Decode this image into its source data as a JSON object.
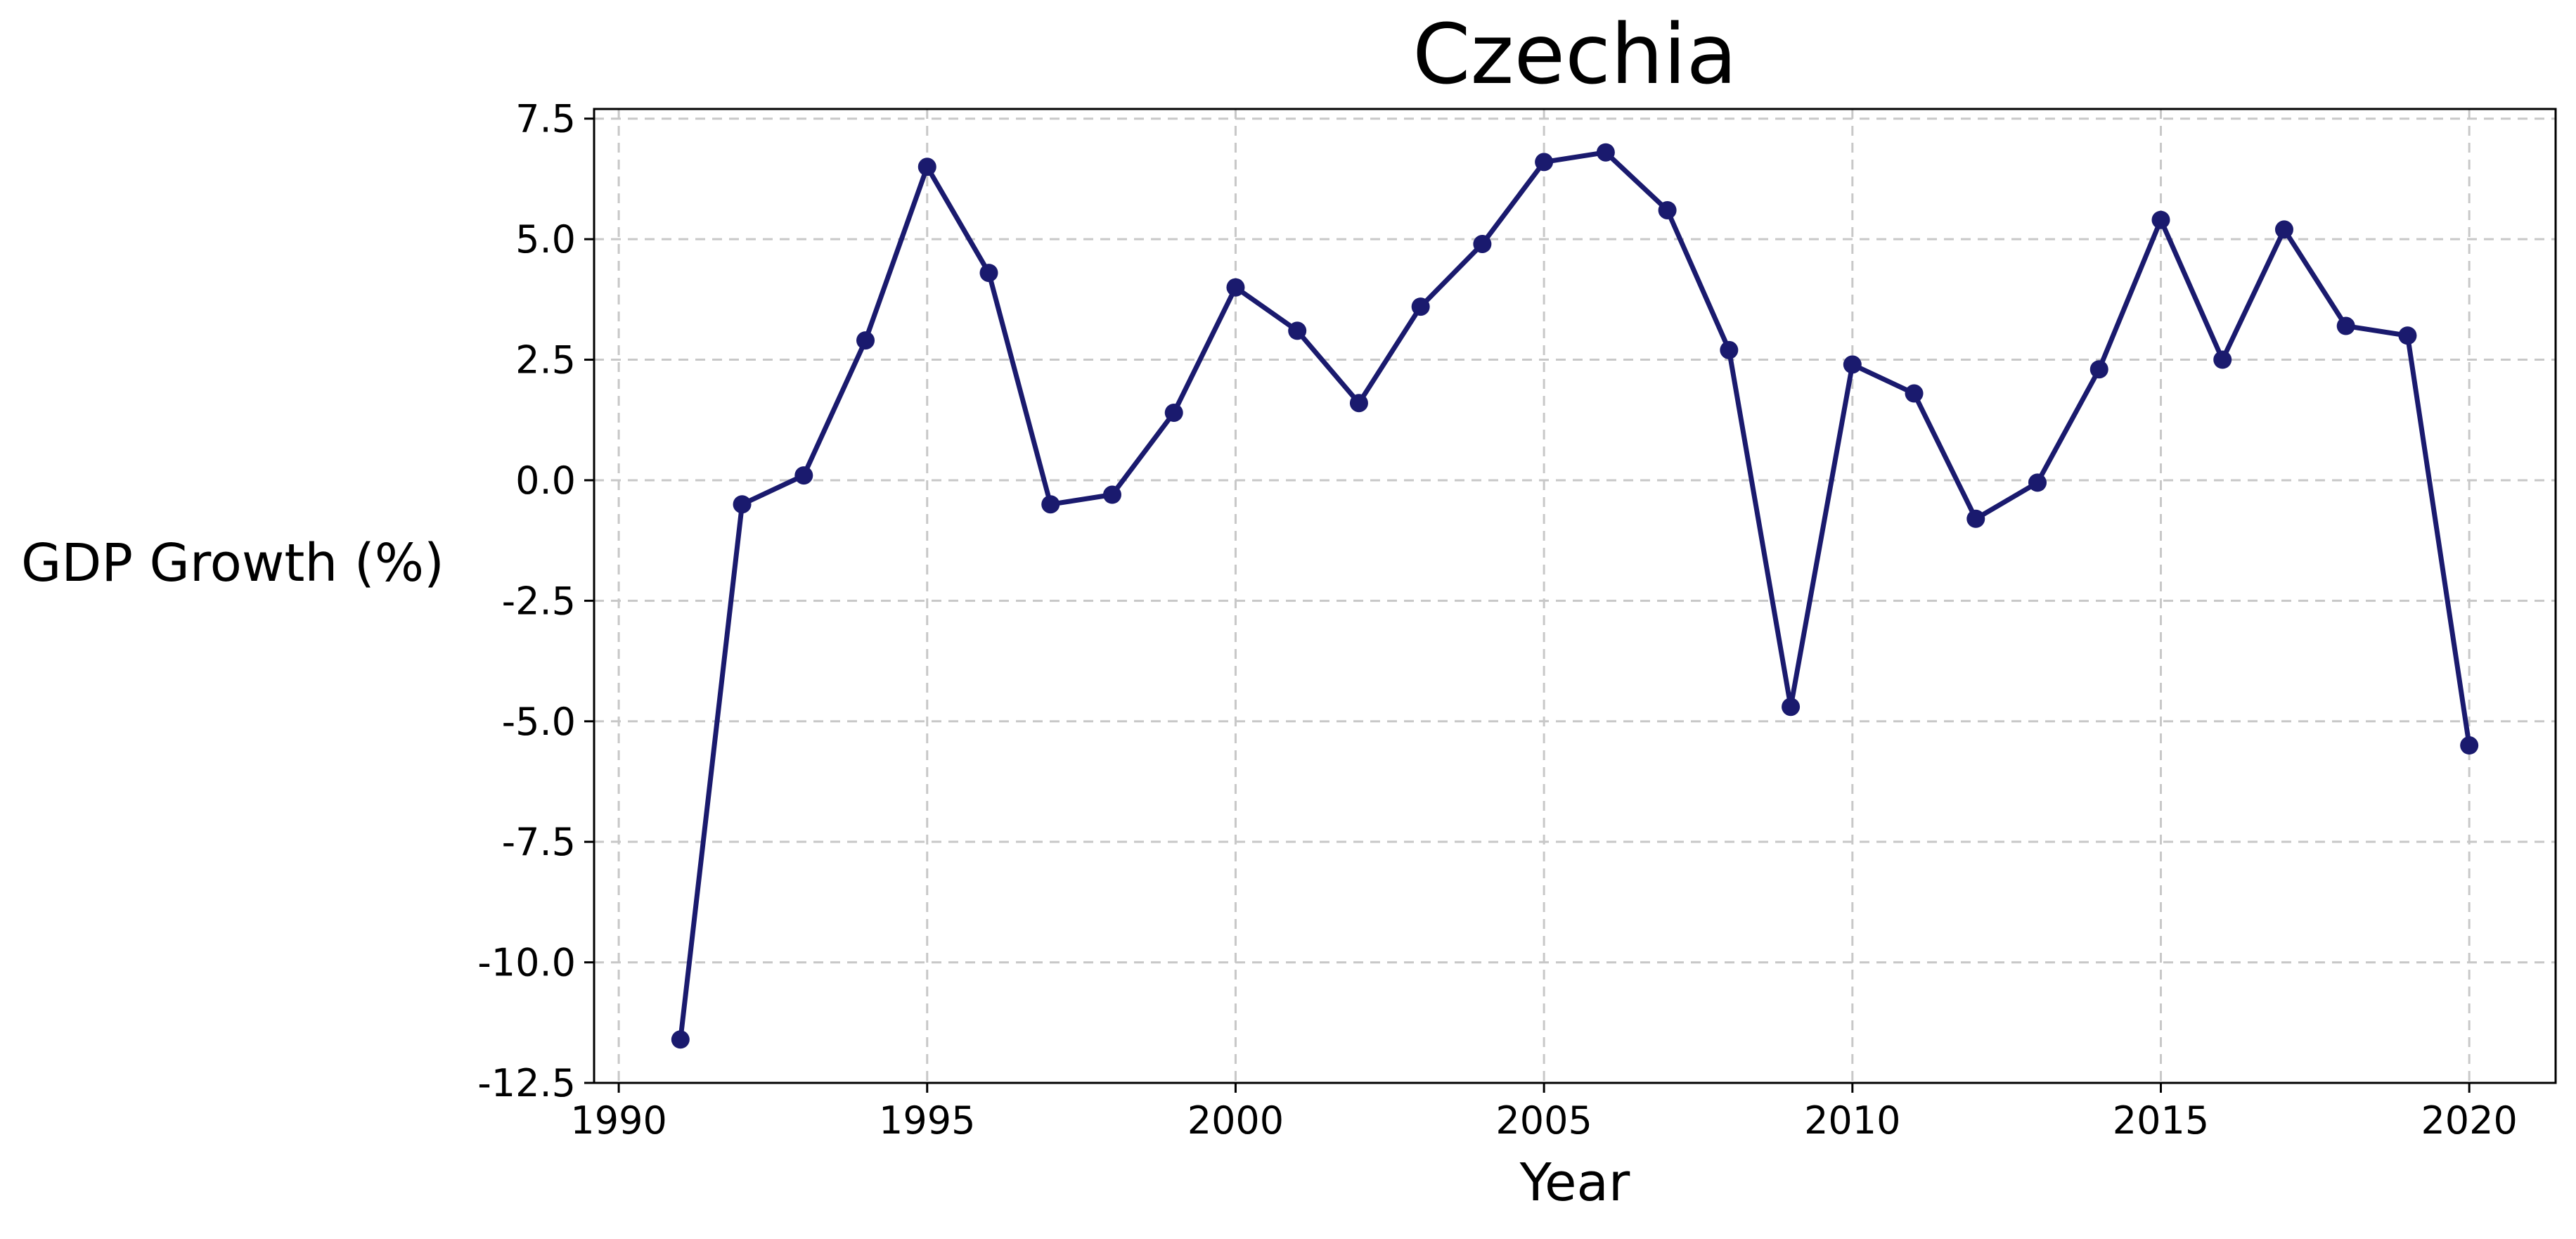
{
  "chart_data": {
    "type": "line",
    "title": "Czechia",
    "xlabel": "Year",
    "ylabel": "GDP Growth (%)",
    "xlim": [
      1989.6,
      2021.4
    ],
    "ylim": [
      -12.5,
      7.7
    ],
    "x_ticks": [
      1990,
      1995,
      2000,
      2005,
      2010,
      2015,
      2020
    ],
    "x_tick_labels": [
      "1990",
      "1995",
      "2000",
      "2005",
      "2010",
      "2015",
      "2020"
    ],
    "y_ticks": [
      7.5,
      5.0,
      2.5,
      0.0,
      -2.5,
      -5.0,
      -7.5,
      -10.0,
      -12.5
    ],
    "y_tick_labels": [
      "7.5",
      "5.0",
      "2.5",
      "0.0",
      "-2.5",
      "-5.0",
      "-7.5",
      "-10.0",
      "-12.5"
    ],
    "grid": true,
    "legend": "none",
    "colors": {
      "line": "#1a1a6e",
      "marker": "#1a1a6e",
      "grid": "#c8c8c8"
    },
    "series": [
      {
        "x": [
          1991,
          1992,
          1993,
          1994,
          1995,
          1996,
          1997,
          1998,
          1999,
          2000,
          2001,
          2002,
          2003,
          2004,
          2005,
          2006,
          2007,
          2008,
          2009,
          2010,
          2011,
          2012,
          2013,
          2014,
          2015,
          2016,
          2017,
          2018,
          2019,
          2020
        ],
        "values": [
          -11.6,
          -0.5,
          0.1,
          2.9,
          6.5,
          4.3,
          -0.5,
          -0.3,
          1.4,
          4.0,
          3.1,
          1.6,
          3.6,
          4.9,
          6.6,
          6.8,
          5.6,
          2.7,
          -4.7,
          2.4,
          1.8,
          -0.8,
          -0.05,
          2.3,
          5.4,
          2.5,
          5.2,
          3.2,
          3.0,
          -5.5
        ]
      }
    ]
  }
}
